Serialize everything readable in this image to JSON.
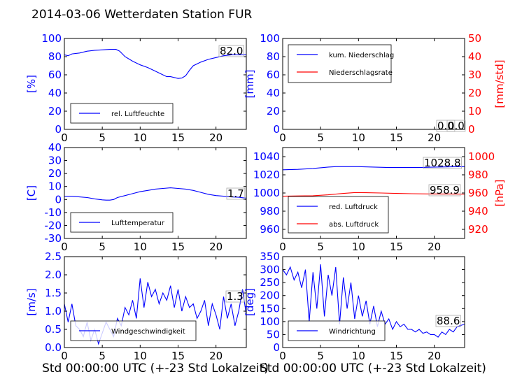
{
  "title": "2014-03-06 Wetterdaten Station FUR",
  "xlabel": "Std 00:00:00 UTC (+-23 Std Lokalzeit)",
  "colors": {
    "primary": "#0000ff",
    "secondary": "#ff0000",
    "frame": "#000000"
  },
  "chart_data": [
    {
      "type": "line",
      "ylabel": "[%]",
      "xlim": [
        0,
        24
      ],
      "ylim": [
        0,
        100
      ],
      "xticks": [
        0,
        5,
        10,
        15,
        20
      ],
      "yticks": [
        0,
        20,
        40,
        60,
        80,
        100
      ],
      "legend": "lower-left",
      "annotation": "82.0",
      "series": [
        {
          "name": "rel. Luftfeuchte",
          "color": "#0000ff",
          "x": [
            0,
            0.5,
            1,
            2,
            3,
            4,
            5,
            6,
            6.8,
            7.3,
            8,
            9,
            10,
            11,
            12,
            13,
            13.5,
            14,
            15,
            15.5,
            16,
            16.5,
            17,
            18,
            19,
            20,
            21,
            22,
            23,
            24
          ],
          "y": [
            82,
            81,
            83,
            84,
            86,
            87,
            87.5,
            88,
            88,
            86,
            80,
            75,
            71,
            68,
            64,
            60,
            58,
            58,
            56,
            56.5,
            59,
            65,
            70,
            74,
            77,
            79,
            81,
            82,
            82,
            82
          ]
        }
      ]
    },
    {
      "type": "line",
      "ylabel": "[mm]",
      "ylabel2": "[mm/std]",
      "xlim": [
        0,
        24
      ],
      "ylim": [
        0,
        100
      ],
      "ylim2": [
        0,
        50
      ],
      "xticks": [
        0,
        5,
        10,
        15,
        20
      ],
      "yticks": [
        0,
        20,
        40,
        60,
        80,
        100
      ],
      "yticks2": [
        0,
        10,
        20,
        30,
        40,
        50
      ],
      "legend": "upper-left",
      "annotations": [
        "0.0",
        "0.0"
      ],
      "series": [
        {
          "name": "kum. Niederschlag",
          "color": "#0000ff",
          "x": [
            0,
            24
          ],
          "y": [
            0,
            0
          ]
        },
        {
          "name": "Niederschlagsrate",
          "color": "#ff0000",
          "x": [
            0,
            24
          ],
          "y": [
            0,
            0
          ]
        }
      ]
    },
    {
      "type": "line",
      "ylabel": "[C]",
      "xlim": [
        0,
        24
      ],
      "ylim": [
        -30,
        40
      ],
      "xticks": [
        0,
        5,
        10,
        15,
        20
      ],
      "yticks": [
        -30,
        -20,
        -10,
        0,
        10,
        20,
        30,
        40
      ],
      "legend": "lower-left",
      "annotation": "1.7",
      "series": [
        {
          "name": "Lufttemperatur",
          "color": "#0000ff",
          "x": [
            0,
            1,
            2,
            3,
            4,
            5,
            5.5,
            6,
            6.5,
            7,
            8,
            9,
            10,
            11,
            12,
            13,
            14,
            15,
            16,
            17,
            18,
            19,
            20,
            21,
            22,
            23,
            24
          ],
          "y": [
            2.5,
            2.5,
            2,
            1.5,
            0.5,
            -0.3,
            -0.5,
            -0.5,
            0,
            1.5,
            3,
            4.5,
            6,
            7,
            8,
            8.5,
            9,
            8.5,
            8,
            7,
            5.5,
            4,
            3,
            2.5,
            2,
            1.7,
            1
          ]
        }
      ]
    },
    {
      "type": "line",
      "ylabel2": "[hPa]",
      "xlim": [
        0,
        24
      ],
      "ylim": [
        950,
        1050
      ],
      "ylim2": [
        910,
        1010
      ],
      "xticks": [
        0,
        5,
        10,
        15,
        20
      ],
      "yticks": [
        960,
        980,
        1000,
        1020,
        1040
      ],
      "yticks2": [
        920,
        940,
        960,
        980,
        1000
      ],
      "legend": "lower-left",
      "annotations": [
        "1028.8",
        "958.9"
      ],
      "series": [
        {
          "name": "red. Luftdruck",
          "color": "#0000ff",
          "x": [
            0,
            2,
            4,
            6,
            7,
            8,
            10,
            12,
            14,
            16,
            18,
            20,
            22,
            24
          ],
          "y": [
            1025.5,
            1026,
            1027,
            1028.5,
            1029,
            1029,
            1029,
            1028.5,
            1028,
            1028,
            1028,
            1028.5,
            1028.8,
            1029
          ]
        },
        {
          "name": "abs. Luftdruck",
          "color": "#ff0000",
          "x": [
            0,
            2,
            4,
            6,
            8,
            9.5,
            11,
            13,
            15,
            17,
            19,
            21,
            22,
            24
          ],
          "y": [
            956.5,
            956.8,
            957,
            958,
            959.5,
            960.5,
            960.3,
            960,
            959.5,
            959.2,
            959,
            958.9,
            958.9,
            958.8
          ]
        }
      ]
    },
    {
      "type": "line",
      "ylabel": "[m/s]",
      "xlim": [
        0,
        24
      ],
      "ylim": [
        0,
        2.5
      ],
      "xticks": [
        0,
        5,
        10,
        15,
        20
      ],
      "yticks": [
        0.0,
        0.5,
        1.0,
        1.5,
        2.0,
        2.5
      ],
      "legend": "lower-left",
      "annotation": "1.3",
      "series": [
        {
          "name": "Windgeschwindigkeit",
          "color": "#0000ff",
          "x": [
            0,
            0.5,
            1,
            1.5,
            2,
            2.5,
            3,
            3.5,
            4,
            4.5,
            5,
            5.5,
            6,
            6.5,
            7,
            7.5,
            8,
            8.5,
            9,
            9.5,
            10,
            10.5,
            11,
            11.5,
            12,
            12.5,
            13,
            13.5,
            14,
            14.5,
            15,
            15.5,
            16,
            16.5,
            17,
            17.5,
            18,
            18.5,
            19,
            19.5,
            20,
            20.5,
            21,
            21.5,
            22,
            22.5,
            23,
            23.5,
            24
          ],
          "y": [
            1.2,
            0.7,
            1.2,
            0.6,
            0.5,
            0.3,
            0.7,
            0.2,
            0.5,
            0.1,
            0.4,
            0.7,
            0.5,
            0.3,
            0.8,
            0.6,
            1.1,
            0.9,
            1.3,
            0.8,
            1.9,
            1.1,
            1.8,
            1.4,
            1.6,
            1.2,
            1.5,
            1.3,
            1.7,
            1.1,
            1.6,
            1.0,
            1.4,
            1.1,
            1.2,
            0.8,
            1.0,
            1.3,
            0.6,
            1.2,
            0.9,
            0.5,
            1.4,
            0.8,
            1.2,
            0.6,
            1.0,
            1.6,
            0.9
          ]
        }
      ]
    },
    {
      "type": "line",
      "ylabel": "[deg]",
      "xlim": [
        0,
        24
      ],
      "ylim": [
        0,
        350
      ],
      "xticks": [
        0,
        5,
        10,
        15,
        20
      ],
      "yticks": [
        0,
        50,
        100,
        150,
        200,
        250,
        300,
        350
      ],
      "legend": "lower-left",
      "annotation": "88.6",
      "series": [
        {
          "name": "Windrichtung",
          "color": "#0000ff",
          "x": [
            0,
            0.5,
            1,
            1.5,
            2,
            2.5,
            3,
            3.5,
            4,
            4.5,
            5,
            5.5,
            6,
            6.5,
            7,
            7.5,
            8,
            8.5,
            9,
            9.5,
            10,
            10.5,
            11,
            11.5,
            12,
            12.5,
            13,
            13.5,
            14,
            14.5,
            15,
            15.5,
            16,
            16.5,
            17,
            17.5,
            18,
            18.5,
            19,
            19.5,
            20,
            20.5,
            21,
            21.5,
            22,
            22.5,
            23,
            23.5,
            24
          ],
          "y": [
            300,
            280,
            310,
            260,
            290,
            230,
            300,
            100,
            290,
            150,
            320,
            120,
            280,
            200,
            310,
            90,
            270,
            150,
            250,
            110,
            200,
            120,
            180,
            90,
            160,
            80,
            140,
            90,
            110,
            70,
            100,
            80,
            90,
            70,
            70,
            60,
            70,
            55,
            60,
            50,
            50,
            40,
            60,
            50,
            70,
            60,
            80,
            85,
            90
          ]
        }
      ]
    }
  ]
}
